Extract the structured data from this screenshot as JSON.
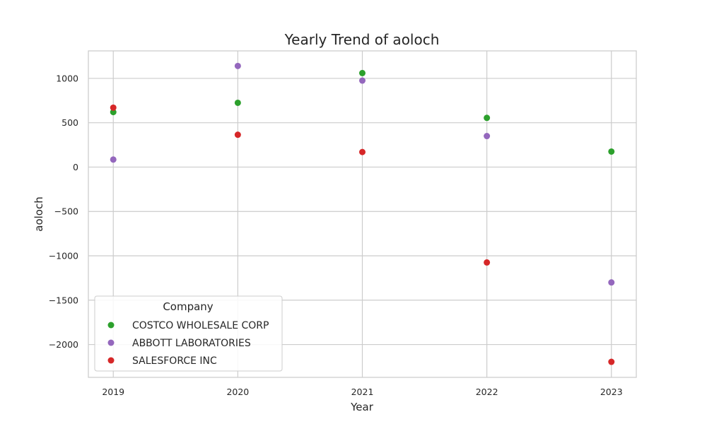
{
  "chart_data": {
    "type": "scatter",
    "title": "Yearly Trend of aoloch",
    "xlabel": "Year",
    "ylabel": "aoloch",
    "x": [
      2019,
      2020,
      2021,
      2022,
      2023
    ],
    "x_tick_labels": [
      "2019",
      "2020",
      "2021",
      "2022",
      "2023"
    ],
    "xlim": [
      2018.8,
      2023.2
    ],
    "ylim": [
      -2370,
      1310
    ],
    "y_ticks": [
      1000,
      500,
      0,
      -500,
      -1000,
      -1500,
      -2000
    ],
    "y_tick_labels": [
      "1000",
      "500",
      "0",
      "−500",
      "−1000",
      "−1500",
      "−2000"
    ],
    "grid": true,
    "legend": {
      "title": "Company",
      "placement": "lower-left"
    },
    "series": [
      {
        "name": "COSTCO WHOLESALE CORP",
        "color": "#2ca02c",
        "values": [
          620,
          725,
          1060,
          555,
          175
        ]
      },
      {
        "name": "ABBOTT LABORATORIES",
        "color": "#9467bd",
        "values": [
          85,
          1140,
          975,
          350,
          -1300
        ]
      },
      {
        "name": "SALESFORCE INC",
        "color": "#d62728",
        "values": [
          670,
          365,
          170,
          -1075,
          -2195
        ]
      }
    ]
  }
}
